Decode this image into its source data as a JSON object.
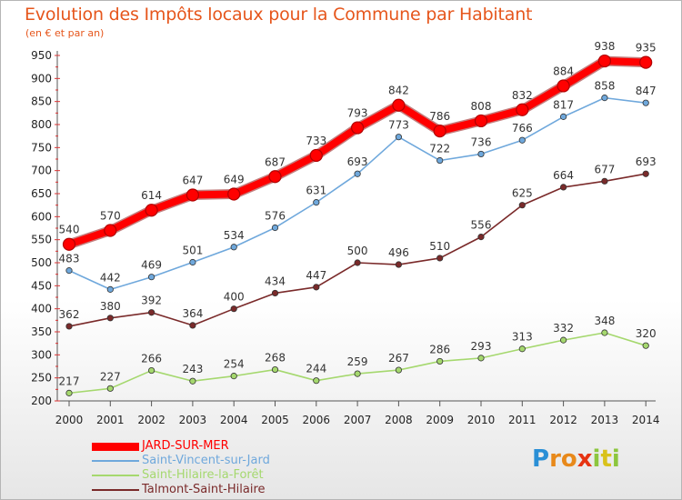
{
  "title": "Evolution des Impôts locaux pour la Commune par Habitant",
  "subtitle": "(en € et par an)",
  "logo": {
    "text": "Proxiti",
    "letters": [
      "P",
      "r",
      "o",
      "x",
      "i",
      "t",
      "i"
    ],
    "colors": [
      "#2a8fd6",
      "#e8891a",
      "#e8891a",
      "#e63312",
      "#8cc63e",
      "#d9c21b",
      "#8cc63e"
    ]
  },
  "chart_data": {
    "type": "line",
    "x": [
      "2000",
      "2001",
      "2002",
      "2003",
      "2004",
      "2005",
      "2006",
      "2007",
      "2008",
      "2009",
      "2010",
      "2011",
      "2012",
      "2013",
      "2014"
    ],
    "ylim": [
      200,
      950
    ],
    "yticks": [
      200,
      250,
      300,
      350,
      400,
      450,
      500,
      550,
      600,
      650,
      700,
      750,
      800,
      850,
      900,
      950
    ],
    "grid": false,
    "legend": "bottom-left",
    "series": [
      {
        "name": "JARD-SUR-MER",
        "color": "#ff0000",
        "values": [
          540,
          570,
          614,
          647,
          649,
          687,
          733,
          793,
          842,
          786,
          808,
          832,
          884,
          938,
          935
        ]
      },
      {
        "name": "Saint-Vincent-sur-Jard",
        "color": "#6fa8dc",
        "values": [
          483,
          442,
          469,
          501,
          534,
          576,
          631,
          693,
          773,
          722,
          736,
          766,
          817,
          858,
          847
        ]
      },
      {
        "name": "Saint-Hilaire-la-Forêt",
        "color": "#a5d86e",
        "values": [
          217,
          227,
          266,
          243,
          254,
          268,
          244,
          259,
          267,
          286,
          293,
          313,
          332,
          348,
          320
        ]
      },
      {
        "name": "Talmont-Saint-Hilaire",
        "color": "#7a2a2a",
        "values": [
          362,
          380,
          392,
          364,
          400,
          434,
          447,
          500,
          496,
          510,
          556,
          625,
          664,
          677,
          693
        ]
      }
    ]
  }
}
